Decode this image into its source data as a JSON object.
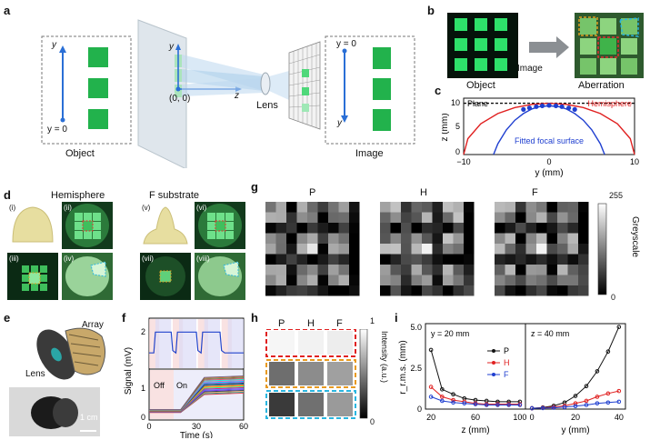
{
  "panels": {
    "a": {
      "label": "a",
      "object_caption": "Object",
      "image_caption": "Image",
      "lens_label": "Lens",
      "axis_y": "y",
      "axis_z": "z",
      "origin_label": "(0, 0)",
      "y0_object": "y = 0",
      "y0_image": "y = 0"
    },
    "b": {
      "label": "b",
      "object_caption": "Object",
      "arrow_caption": "Image",
      "aberration_caption": "Aberration"
    },
    "c": {
      "label": "c",
      "plane_label": "Plane",
      "hemisphere_label": "Hemisphere",
      "fitted_label": "Fitted focal surface",
      "ylabel": "z (mm)",
      "xlabel": "y (mm)",
      "yticks": [
        "0",
        "5",
        "10"
      ],
      "xticks": [
        "−10",
        "0",
        "10"
      ]
    },
    "d": {
      "label": "d",
      "hemisphere_title": "Hemisphere",
      "fsub_title": "F substrate",
      "sub": [
        "(i)",
        "(ii)",
        "(iii)",
        "(iv)",
        "(v)",
        "(vi)",
        "(vii)",
        "(viii)"
      ]
    },
    "e": {
      "label": "e",
      "array_label": "Array",
      "lens_label": "Lens",
      "scale_label": "1 cm"
    },
    "f": {
      "label": "f",
      "ylabel": "Signal (mV)",
      "xlabel": "Time (s)",
      "xticks": [
        "0",
        "30",
        "60"
      ],
      "yticks_top": [
        "2"
      ],
      "yticks_bottom": [
        "0",
        "1"
      ],
      "off_label": "Off",
      "on_label": "On"
    },
    "g": {
      "label": "g",
      "titles": [
        "P",
        "H",
        "F"
      ],
      "cbar_max": "255",
      "cbar_min": "0",
      "cbar_label": "Greyscale"
    },
    "h": {
      "label": "h",
      "titles": [
        "P",
        "H",
        "F"
      ],
      "cbar_max": "1",
      "cbar_min": "0",
      "cbar_label": "Intensity (a.u.)"
    },
    "i": {
      "label": "i",
      "ylabel": "r_r.m.s. (mm)",
      "left_note": "y = 20 mm",
      "right_note": "z = 40 mm",
      "left_xlabel": "z (mm)",
      "right_xlabel": "y (mm)",
      "left_xticks": [
        "20",
        "60",
        "100"
      ],
      "right_xticks": [
        "0",
        "20",
        "40"
      ],
      "yticks": [
        "0",
        "2.5",
        "5.0"
      ]
    }
  },
  "chart_data": [
    {
      "type": "line",
      "panel": "c",
      "xlabel": "y (mm)",
      "ylabel": "z (mm)",
      "xlim": [
        -10,
        10
      ],
      "ylim": [
        0,
        11
      ],
      "series": [
        {
          "name": "Plane",
          "x": [
            -10,
            10
          ],
          "y": [
            10,
            10
          ],
          "color": "#111111"
        },
        {
          "name": "Hemisphere",
          "x": [
            -10,
            -9.5,
            -8,
            -6,
            -4,
            -2,
            0,
            2,
            4,
            6,
            8,
            9.5,
            10
          ],
          "y": [
            0,
            3.1,
            6.0,
            8.0,
            9.17,
            9.8,
            10,
            9.8,
            9.17,
            8.0,
            6.0,
            3.1,
            0
          ],
          "color": "#e02020"
        },
        {
          "name": "Fitted focal surface",
          "x": [
            -6.5,
            -6,
            -5,
            -4,
            -3,
            -2,
            -1,
            0,
            1,
            2,
            3,
            4,
            5,
            6,
            6.5
          ],
          "y": [
            0,
            2.1,
            4.8,
            6.7,
            8.0,
            8.9,
            9.4,
            9.5,
            9.4,
            8.9,
            8.0,
            6.7,
            4.8,
            2.1,
            0
          ],
          "color": "#1f3fd0"
        },
        {
          "name": "points",
          "x": [
            -3,
            -2.3,
            -1.5,
            -0.8,
            0,
            0.8,
            1.5,
            2.3,
            3
          ],
          "y": [
            8.8,
            9.1,
            9.35,
            9.5,
            9.6,
            9.5,
            9.35,
            9.1,
            8.8
          ],
          "color": "#1f3fd0"
        }
      ]
    },
    {
      "type": "line",
      "panel": "f",
      "xlabel": "Time (s)",
      "ylabel": "Signal (mV)",
      "xlim": [
        0,
        60
      ],
      "top_trace": {
        "x": [
          0,
          3,
          4,
          14,
          15,
          17,
          18,
          30,
          31,
          33,
          34,
          45,
          46,
          48,
          49,
          60
        ],
        "y": [
          1.55,
          1.55,
          2.0,
          2.0,
          1.6,
          1.55,
          2.0,
          2.0,
          1.6,
          1.55,
          2.0,
          2.0,
          1.6,
          1.55,
          1.55,
          1.55
        ],
        "color": "#2244cc"
      },
      "bottom_trace_count": 20,
      "bottom_start_value": 0.25,
      "bottom_rise_start": 20,
      "bottom_rise_end": 35
    },
    {
      "type": "line",
      "panel": "i-left",
      "xlabel": "z (mm)",
      "ylabel": "r_r.m.s. (mm)",
      "xlim": [
        15,
        105
      ],
      "ylim": [
        0,
        5.2
      ],
      "x": [
        20,
        30,
        40,
        50,
        60,
        70,
        80,
        90,
        100
      ],
      "series": [
        {
          "name": "P",
          "values": [
            3.6,
            1.2,
            0.9,
            0.65,
            0.55,
            0.5,
            0.45,
            0.45,
            0.45
          ],
          "color": "#111111"
        },
        {
          "name": "H",
          "values": [
            1.35,
            0.75,
            0.55,
            0.45,
            0.35,
            0.3,
            0.3,
            0.3,
            0.3
          ],
          "color": "#e02020"
        },
        {
          "name": "F",
          "values": [
            0.75,
            0.5,
            0.4,
            0.35,
            0.3,
            0.25,
            0.25,
            0.25,
            0.25
          ],
          "color": "#1f3fd0"
        }
      ]
    },
    {
      "type": "line",
      "panel": "i-right",
      "xlabel": "y (mm)",
      "xlim": [
        -3,
        43
      ],
      "ylim": [
        0,
        5.2
      ],
      "x": [
        0,
        5,
        10,
        15,
        20,
        25,
        30,
        35,
        40
      ],
      "series": [
        {
          "name": "P",
          "values": [
            0.05,
            0.1,
            0.2,
            0.4,
            0.8,
            1.4,
            2.3,
            3.5,
            5.0
          ],
          "color": "#111111"
        },
        {
          "name": "H",
          "values": [
            0.05,
            0.08,
            0.12,
            0.2,
            0.35,
            0.5,
            0.75,
            0.95,
            1.1
          ],
          "color": "#e02020"
        },
        {
          "name": "F",
          "values": [
            0.05,
            0.06,
            0.08,
            0.12,
            0.18,
            0.25,
            0.35,
            0.4,
            0.45
          ],
          "color": "#1f3fd0"
        }
      ]
    }
  ]
}
